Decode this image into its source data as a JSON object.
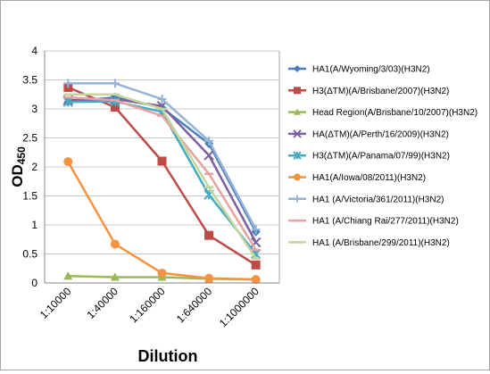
{
  "chart_data": {
    "type": "line",
    "xlabel": "Dilution",
    "ylabel": {
      "main": "OD",
      "sub": "450"
    },
    "categories": [
      "1:10000",
      "1:40000",
      "1:160000",
      "1:640000",
      "1:1000000"
    ],
    "ylim": [
      0,
      4
    ],
    "yticks": [
      "0",
      "0.5",
      "1",
      "1.5",
      "2",
      "2.5",
      "3",
      "3.5",
      "4"
    ],
    "grid": true,
    "legend": "right",
    "series": [
      {
        "name": "HA1(A/Wyoming/3/03)(H3N2)",
        "color": "#4a7ebb",
        "marker": "diamond",
        "values": [
          3.12,
          3.2,
          3.02,
          2.4,
          0.88
        ]
      },
      {
        "name": "H3(ΔTM)(A/Brisbane/2007)(H3N2)",
        "color": "#be4b48",
        "marker": "square",
        "values": [
          3.37,
          3.03,
          2.1,
          0.82,
          0.31
        ]
      },
      {
        "name": "Head Region(A/Brisbane/10/2007)(H3N2)",
        "color": "#98b954",
        "marker": "triangle",
        "values": [
          0.12,
          0.1,
          0.1,
          0.07,
          0.06
        ]
      },
      {
        "name": "HA(ΔTM)(A/Perth/16/2009)(H3N2)",
        "color": "#7d60a0",
        "marker": "x",
        "values": [
          3.15,
          3.17,
          3.05,
          2.2,
          0.7
        ]
      },
      {
        "name": "H3(ΔTM)(A/Panama/07/99)(H3N2)",
        "color": "#46aac5",
        "marker": "star",
        "values": [
          3.12,
          3.13,
          2.95,
          1.52,
          0.5
        ]
      },
      {
        "name": "HA1(A/Iowa/08/2011)(H3N2)",
        "color": "#f69240",
        "marker": "circle",
        "values": [
          2.09,
          0.67,
          0.17,
          0.08,
          0.06
        ]
      },
      {
        "name": "HA1 (A/Victoria/361/2011)(H3N2)",
        "color": "#95b3d7",
        "marker": "plus",
        "values": [
          3.44,
          3.44,
          3.17,
          2.45,
          0.92
        ]
      },
      {
        "name": "HA1 (A/Chiang Rai/277/2011)(H3N2)",
        "color": "#e6a3a1",
        "marker": "dash",
        "values": [
          3.2,
          3.15,
          2.88,
          1.88,
          0.57
        ]
      },
      {
        "name": "HA1 (A/Brisbane/299/2011)(H3N2)",
        "color": "#c3d69b",
        "marker": "dash",
        "values": [
          3.25,
          3.25,
          3.0,
          1.65,
          0.42
        ]
      }
    ]
  }
}
